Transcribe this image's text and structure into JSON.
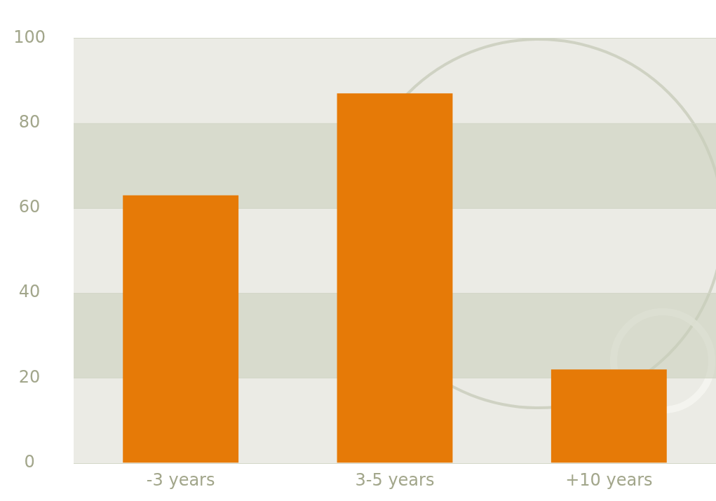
{
  "chart_data": {
    "type": "bar",
    "categories": [
      "-3 years",
      "3-5 years",
      "+10 years"
    ],
    "values": [
      63,
      87,
      22
    ],
    "color": "#e67a07",
    "ylim": [
      0,
      100
    ],
    "yticks": [
      0,
      20,
      40,
      60,
      80,
      100
    ],
    "grid": "y"
  }
}
